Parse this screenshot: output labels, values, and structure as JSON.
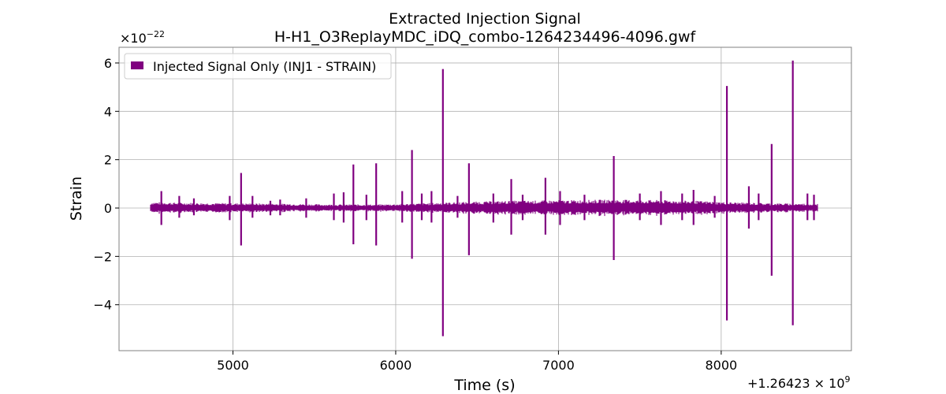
{
  "chart_data": {
    "type": "line",
    "title": "Extracted Injection Signal",
    "subtitle": "H-H1_O3ReplayMDC_iDQ_combo-1264234496-4096.gwf",
    "xlabel": "Time (s)",
    "ylabel": "Strain",
    "y_multiplier_label": "×10",
    "y_multiplier_exp": "−22",
    "x_offset_label": "+1.26423 × 10",
    "x_offset_exp": "9",
    "x_offset": 1264230000,
    "xlim": [
      4300,
      8800
    ],
    "ylim": [
      -5.9,
      6.65
    ],
    "y_scale_factor": 1e-22,
    "x_ticks": [
      5000,
      6000,
      7000,
      8000
    ],
    "x_tick_labels": [
      "5000",
      "6000",
      "7000",
      "8000"
    ],
    "y_ticks": [
      -4,
      -2,
      0,
      2,
      4,
      6
    ],
    "y_tick_labels": [
      "−4",
      "−2",
      "0",
      "2",
      "4",
      "6"
    ],
    "grid": true,
    "legend_position": "top-left",
    "series": [
      {
        "name": "Injected Signal Only (INJ1 - STRAIN)",
        "color": "#800080",
        "x_range": [
          4496,
          8592
        ],
        "baseline_envelope": [
          [
            4496,
            0.25
          ],
          [
            4700,
            0.22
          ],
          [
            5000,
            0.2
          ],
          [
            5300,
            0.18
          ],
          [
            5600,
            0.15
          ],
          [
            5900,
            0.15
          ],
          [
            6100,
            0.18
          ],
          [
            6250,
            0.22
          ],
          [
            6400,
            0.25
          ],
          [
            6700,
            0.3
          ],
          [
            7000,
            0.32
          ],
          [
            7300,
            0.35
          ],
          [
            7600,
            0.33
          ],
          [
            7850,
            0.3
          ],
          [
            8000,
            0.25
          ],
          [
            8300,
            0.2
          ],
          [
            8592,
            0.18
          ]
        ],
        "spikes": [
          {
            "x": 4560,
            "ymax": 0.7,
            "ymin": -0.7
          },
          {
            "x": 4670,
            "ymax": 0.5,
            "ymin": -0.4
          },
          {
            "x": 4760,
            "ymax": 0.4,
            "ymin": -0.3
          },
          {
            "x": 4980,
            "ymax": 0.5,
            "ymin": -0.5
          },
          {
            "x": 5050,
            "ymax": 1.45,
            "ymin": -1.55
          },
          {
            "x": 5120,
            "ymax": 0.5,
            "ymin": -0.4
          },
          {
            "x": 5230,
            "ymax": 0.3,
            "ymin": -0.3
          },
          {
            "x": 5290,
            "ymax": 0.35,
            "ymin": -0.3
          },
          {
            "x": 5450,
            "ymax": 0.4,
            "ymin": -0.4
          },
          {
            "x": 5620,
            "ymax": 0.6,
            "ymin": -0.5
          },
          {
            "x": 5680,
            "ymax": 0.65,
            "ymin": -0.6
          },
          {
            "x": 5740,
            "ymax": 1.8,
            "ymin": -1.5
          },
          {
            "x": 5820,
            "ymax": 0.55,
            "ymin": -0.5
          },
          {
            "x": 5880,
            "ymax": 1.85,
            "ymin": -1.55
          },
          {
            "x": 6040,
            "ymax": 0.7,
            "ymin": -0.6
          },
          {
            "x": 6100,
            "ymax": 2.4,
            "ymin": -2.1
          },
          {
            "x": 6160,
            "ymax": 0.6,
            "ymin": -0.5
          },
          {
            "x": 6220,
            "ymax": 0.7,
            "ymin": -0.6
          },
          {
            "x": 6290,
            "ymax": 5.75,
            "ymin": -5.3
          },
          {
            "x": 6380,
            "ymax": 0.5,
            "ymin": -0.4
          },
          {
            "x": 6450,
            "ymax": 1.85,
            "ymin": -1.95
          },
          {
            "x": 6600,
            "ymax": 0.6,
            "ymin": -0.6
          },
          {
            "x": 6710,
            "ymax": 1.2,
            "ymin": -1.1
          },
          {
            "x": 6780,
            "ymax": 0.55,
            "ymin": -0.5
          },
          {
            "x": 6920,
            "ymax": 1.25,
            "ymin": -1.1
          },
          {
            "x": 7010,
            "ymax": 0.7,
            "ymin": -0.7
          },
          {
            "x": 7160,
            "ymax": 0.55,
            "ymin": -0.5
          },
          {
            "x": 7340,
            "ymax": 2.15,
            "ymin": -2.15
          },
          {
            "x": 7500,
            "ymax": 0.6,
            "ymin": -0.5
          },
          {
            "x": 7630,
            "ymax": 0.7,
            "ymin": -0.7
          },
          {
            "x": 7760,
            "ymax": 0.6,
            "ymin": -0.5
          },
          {
            "x": 7830,
            "ymax": 0.75,
            "ymin": -0.7
          },
          {
            "x": 7960,
            "ymax": 0.5,
            "ymin": -0.4
          },
          {
            "x": 8035,
            "ymax": 5.05,
            "ymin": -4.65
          },
          {
            "x": 8170,
            "ymax": 0.9,
            "ymin": -0.85
          },
          {
            "x": 8230,
            "ymax": 0.6,
            "ymin": -0.5
          },
          {
            "x": 8310,
            "ymax": 2.65,
            "ymin": -2.8
          },
          {
            "x": 8440,
            "ymax": 6.1,
            "ymin": -4.85
          },
          {
            "x": 8530,
            "ymax": 0.6,
            "ymin": -0.5
          },
          {
            "x": 8570,
            "ymax": 0.55,
            "ymin": -0.5
          }
        ]
      }
    ]
  }
}
